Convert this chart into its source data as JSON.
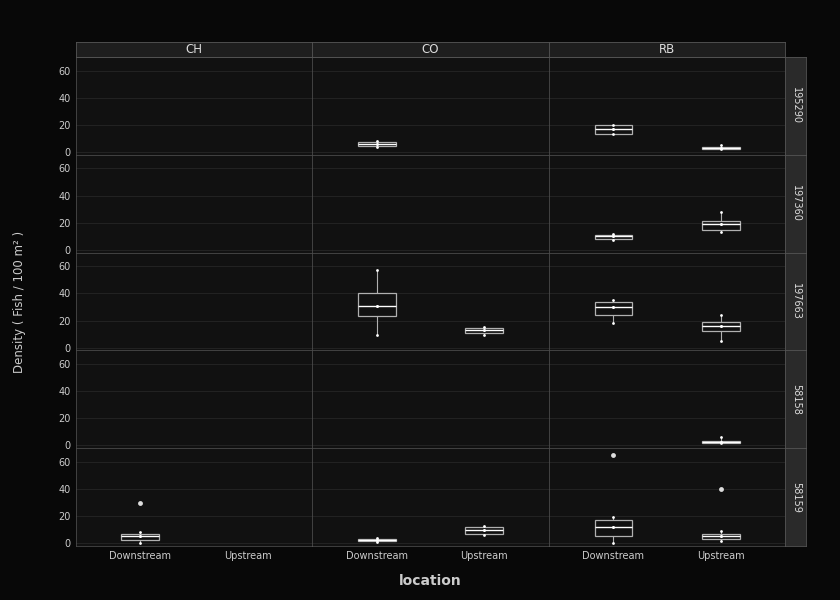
{
  "species": [
    "CH",
    "CO",
    "RB"
  ],
  "sites": [
    "195290",
    "197360",
    "197663",
    "58158",
    "58159"
  ],
  "locations": [
    "Downstream",
    "Upstream"
  ],
  "background_color": "#080808",
  "panel_bg": "#111111",
  "header_bg": "#1e1e1e",
  "strip_right_bg": "#2a2a2a",
  "box_color": "#b0b0b0",
  "median_color": "#ffffff",
  "whisker_color": "#b0b0b0",
  "flier_color": "#dddddd",
  "grid_color": "#2a2a2a",
  "text_color": "#cccccc",
  "title_color": "#dddddd",
  "strip_border": "#555555",
  "ylabel": "Density ( Fish / 100 m² )",
  "xlabel": "location",
  "ylim": [
    -2,
    70
  ],
  "yticks": [
    0,
    20,
    40,
    60
  ],
  "boxplot_data": {
    "CH": {
      "195290": {
        "Downstream": null,
        "Upstream": null
      },
      "197360": {
        "Downstream": null,
        "Upstream": null
      },
      "197663": {
        "Downstream": null,
        "Upstream": null
      },
      "58158": {
        "Downstream": null,
        "Upstream": null
      },
      "58159": {
        "Downstream": {
          "q1": 2.5,
          "median": 5,
          "q3": 7,
          "whislo": 0.5,
          "whishi": 8,
          "fliers": [
            30
          ]
        },
        "Upstream": null
      }
    },
    "CO": {
      "195290": {
        "Downstream": {
          "q1": 4.5,
          "median": 6,
          "q3": 7.5,
          "whislo": 3.5,
          "whishi": 8.5,
          "fliers": []
        },
        "Upstream": null
      },
      "197360": {
        "Downstream": null,
        "Upstream": null
      },
      "197663": {
        "Downstream": {
          "q1": 23,
          "median": 31,
          "q3": 40,
          "whislo": 9,
          "whishi": 57,
          "fliers": []
        },
        "Upstream": {
          "q1": 10.5,
          "median": 13,
          "q3": 14.5,
          "whislo": 9.5,
          "whishi": 15,
          "fliers": []
        }
      },
      "58158": {
        "Downstream": null,
        "Upstream": null
      },
      "58159": {
        "Downstream": {
          "q1": 1.5,
          "median": 2.5,
          "q3": 3.5,
          "whislo": 1.0,
          "whishi": 4.0,
          "fliers": []
        },
        "Upstream": {
          "q1": 7,
          "median": 10,
          "q3": 12,
          "whislo": 6,
          "whishi": 13,
          "fliers": []
        }
      }
    },
    "RB": {
      "195290": {
        "Downstream": {
          "q1": 13,
          "median": 17,
          "q3": 20,
          "whislo": 13,
          "whishi": 20,
          "fliers": []
        },
        "Upstream": {
          "q1": 2,
          "median": 3,
          "q3": 4,
          "whislo": 2,
          "whishi": 5,
          "fliers": []
        }
      },
      "197360": {
        "Downstream": {
          "q1": 8,
          "median": 10,
          "q3": 11,
          "whislo": 7.5,
          "whishi": 11.5,
          "fliers": []
        },
        "Upstream": {
          "q1": 15,
          "median": 19,
          "q3": 21,
          "whislo": 13,
          "whishi": 28,
          "fliers": []
        }
      },
      "197663": {
        "Downstream": {
          "q1": 24,
          "median": 30,
          "q3": 34,
          "whislo": 18,
          "whishi": 35,
          "fliers": []
        },
        "Upstream": {
          "q1": 12,
          "median": 16,
          "q3": 19,
          "whislo": 5,
          "whishi": 24,
          "fliers": []
        }
      },
      "58158": {
        "Downstream": null,
        "Upstream": {
          "q1": 1.5,
          "median": 2.5,
          "q3": 3.5,
          "whislo": 1.5,
          "whishi": 6,
          "fliers": []
        }
      },
      "58159": {
        "Downstream": {
          "q1": 5,
          "median": 12,
          "q3": 17,
          "whislo": 0,
          "whishi": 19,
          "fliers": [
            65
          ]
        },
        "Upstream": {
          "q1": 3,
          "median": 5,
          "q3": 7,
          "whislo": 1.5,
          "whishi": 9,
          "fliers": [
            40
          ]
        }
      }
    }
  }
}
